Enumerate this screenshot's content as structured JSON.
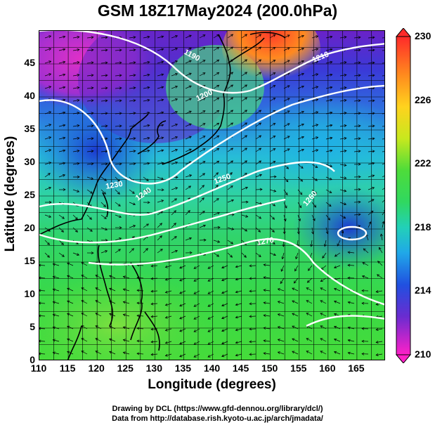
{
  "chart_data": {
    "type": "map",
    "title": "GSM 18Z17May2024 (200.0hPa)",
    "xlabel": "Longitude (degrees)",
    "ylabel": "Latitude  (degrees)",
    "xlim": [
      110,
      170
    ],
    "ylim": [
      0,
      50
    ],
    "xticks": [
      "110",
      "115",
      "120",
      "125",
      "130",
      "135",
      "140",
      "145",
      "150",
      "155",
      "160",
      "165"
    ],
    "yticks": [
      "0",
      "5",
      "10",
      "15",
      "20",
      "25",
      "30",
      "35",
      "40",
      "45"
    ],
    "colorbar": {
      "ticks": [
        "230",
        "226",
        "222",
        "218",
        "214",
        "210"
      ],
      "min": 210,
      "max": 230
    },
    "contour_labels": [
      "1190",
      "1200",
      "1210",
      "1230",
      "1240",
      "1250",
      "1260",
      "1270"
    ]
  },
  "credits": {
    "line1": "Drawing by DCL (https://www.gfd-dennou.org/library/dcl/)",
    "line2": "Data from http://database.rish.kyoto-u.ac.jp/arch/jmadata/"
  }
}
